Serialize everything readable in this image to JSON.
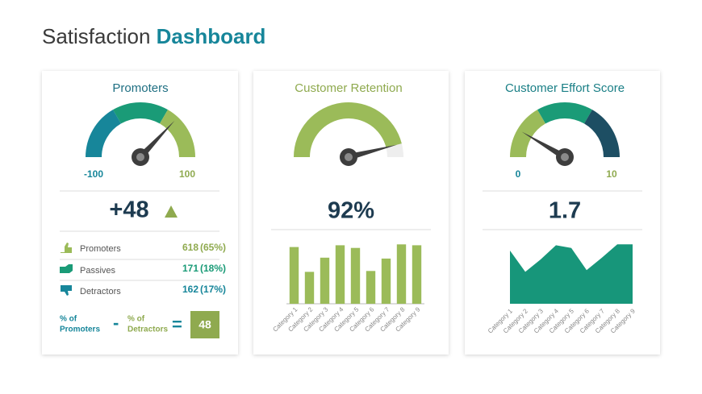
{
  "title": {
    "plain": "Satisfaction",
    "bold": "Dashboard"
  },
  "chart_data": [
    {
      "type": "gauge",
      "title": "Promoters",
      "title_color": "#1f6f82",
      "value": 48,
      "value_label": "+48",
      "ylim": [
        -100,
        100
      ],
      "yticks": [
        -100,
        100
      ],
      "band_colors": [
        "#17869a",
        "#1a9b77",
        "#9bbb59"
      ],
      "tick_colors": [
        "#17869a",
        "#8faa4f"
      ]
    },
    {
      "type": "gauge",
      "title": "Customer Retention",
      "title_color": "#8faa4f",
      "value": 92,
      "value_label": "92%",
      "ylim": [
        0,
        100
      ],
      "color": "#9bbb59"
    },
    {
      "type": "gauge",
      "title": "Customer Effort Score",
      "title_color": "#1a7f86",
      "value": 1.7,
      "ylim": [
        0,
        10
      ],
      "yticks": [
        0,
        10
      ],
      "band_colors": [
        "#9bbb59",
        "#1a9b77",
        "#1d4e63"
      ],
      "tick_colors": [
        "#17869a",
        "#8faa4f"
      ]
    },
    {
      "type": "bar",
      "categories": [
        "Category 1",
        "Category 2",
        "Category 3",
        "Category 4",
        "Category 5",
        "Category 6",
        "Category 7",
        "Category 8",
        "Category 9"
      ],
      "values": [
        64,
        36,
        52,
        66,
        63,
        37,
        51,
        67,
        66
      ],
      "ylim": [
        0,
        70
      ],
      "color": "#9bbb59"
    },
    {
      "type": "area",
      "categories": [
        "Category 1",
        "Category 2",
        "Category 3",
        "Category 4",
        "Category 5",
        "Category 6",
        "Category 7",
        "Category 8",
        "Category 9"
      ],
      "values": [
        60,
        36,
        50,
        66,
        63,
        38,
        52,
        67,
        67
      ],
      "ylim": [
        0,
        70
      ],
      "color": "#17967a"
    }
  ],
  "breakdown": [
    {
      "label": "Promoters",
      "count": 618,
      "share": "(65%)"
    },
    {
      "label": "Passives",
      "count": 171,
      "share": "(18%)"
    },
    {
      "label": "Detractors",
      "count": 162,
      "share": "(17%)"
    }
  ],
  "formula": {
    "left": [
      "% of",
      "Promoters"
    ],
    "minus": "-",
    "right": [
      "% of",
      "Detractors"
    ],
    "equals": "=",
    "result": 48
  }
}
